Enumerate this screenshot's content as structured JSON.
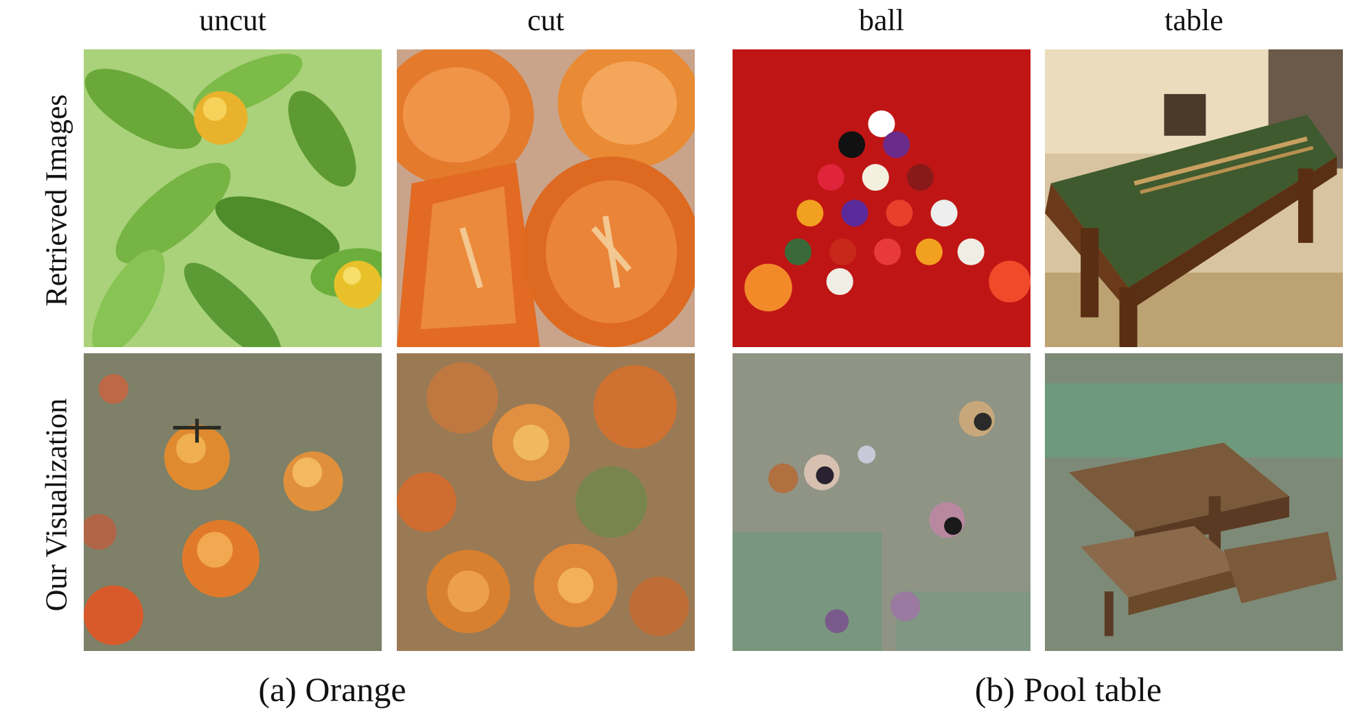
{
  "column_labels": [
    "uncut",
    "cut",
    "ball",
    "table"
  ],
  "row_labels": [
    "Retrieved Images",
    "Our Visualization"
  ],
  "captions": [
    "(a) Orange",
    "(b) Pool table"
  ],
  "panels": [
    {
      "row": "Retrieved Images",
      "column": "uncut",
      "subject": "oranges on tree",
      "dominant_color": "#7fb84a"
    },
    {
      "row": "Retrieved Images",
      "column": "cut",
      "subject": "cut orange halves",
      "dominant_color": "#e0702a"
    },
    {
      "row": "Retrieved Images",
      "column": "ball",
      "subject": "racked pool balls on red felt",
      "dominant_color": "#b81414"
    },
    {
      "row": "Retrieved Images",
      "column": "table",
      "subject": "green pool table in room",
      "dominant_color": "#3f5a32"
    },
    {
      "row": "Our Visualization",
      "column": "uncut",
      "subject": "synthesized oranges",
      "dominant_color": "#8a8272"
    },
    {
      "row": "Our Visualization",
      "column": "cut",
      "subject": "synthesized cut oranges",
      "dominant_color": "#9a7a55"
    },
    {
      "row": "Our Visualization",
      "column": "ball",
      "subject": "synthesized pool balls",
      "dominant_color": "#8f9485"
    },
    {
      "row": "Our Visualization",
      "column": "table",
      "subject": "synthesized pool tables",
      "dominant_color": "#7e8a78"
    }
  ]
}
